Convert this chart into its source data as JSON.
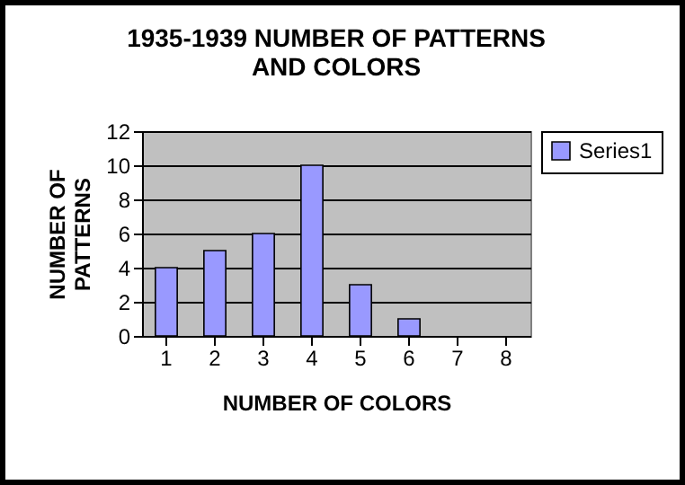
{
  "chart_data": {
    "type": "bar",
    "title": "1935-1939 NUMBER OF PATTERNS\nAND COLORS",
    "xlabel": "NUMBER OF COLORS",
    "ylabel": "NUMBER OF\nPATTERNS",
    "categories": [
      "1",
      "2",
      "3",
      "4",
      "5",
      "6",
      "7",
      "8"
    ],
    "series": [
      {
        "name": "Series1",
        "color": "#9999ff",
        "values": [
          4,
          5,
          6,
          10,
          3,
          1,
          null,
          null
        ]
      }
    ],
    "ylim": [
      0,
      12
    ],
    "yticks": [
      0,
      2,
      4,
      6,
      8,
      10,
      12
    ],
    "grid": "y",
    "legend": "right"
  }
}
